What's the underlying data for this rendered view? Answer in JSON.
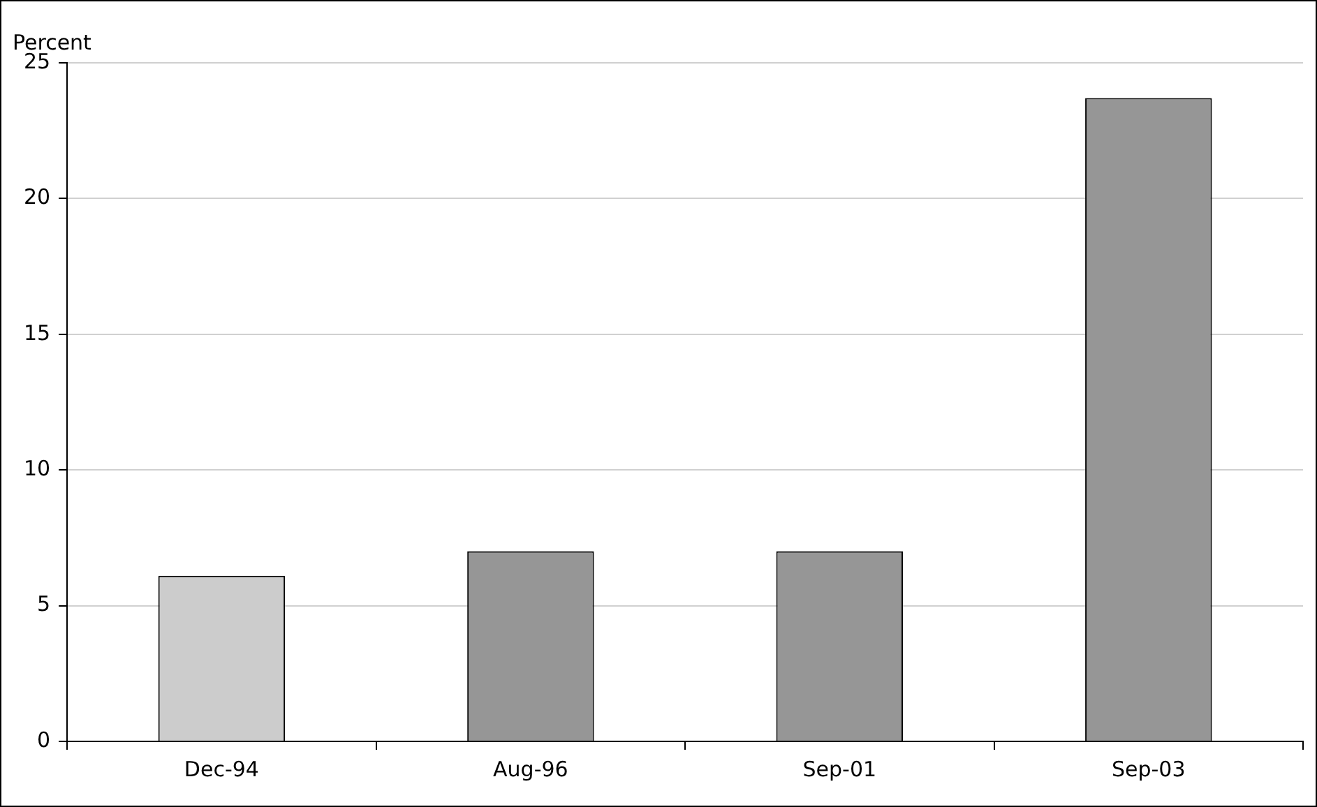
{
  "chart_data": {
    "type": "bar",
    "ylabel": "Percent",
    "categories": [
      "Dec-94",
      "Aug-96",
      "Sep-01",
      "Sep-03"
    ],
    "values": [
      6.1,
      7.0,
      7.0,
      23.7
    ],
    "colors": [
      "#cccccc",
      "#969696",
      "#969696",
      "#969696"
    ],
    "ylim": [
      0,
      25
    ],
    "yticks": [
      0,
      5,
      10,
      15,
      20,
      25
    ],
    "grid": "y",
    "legend": false
  }
}
